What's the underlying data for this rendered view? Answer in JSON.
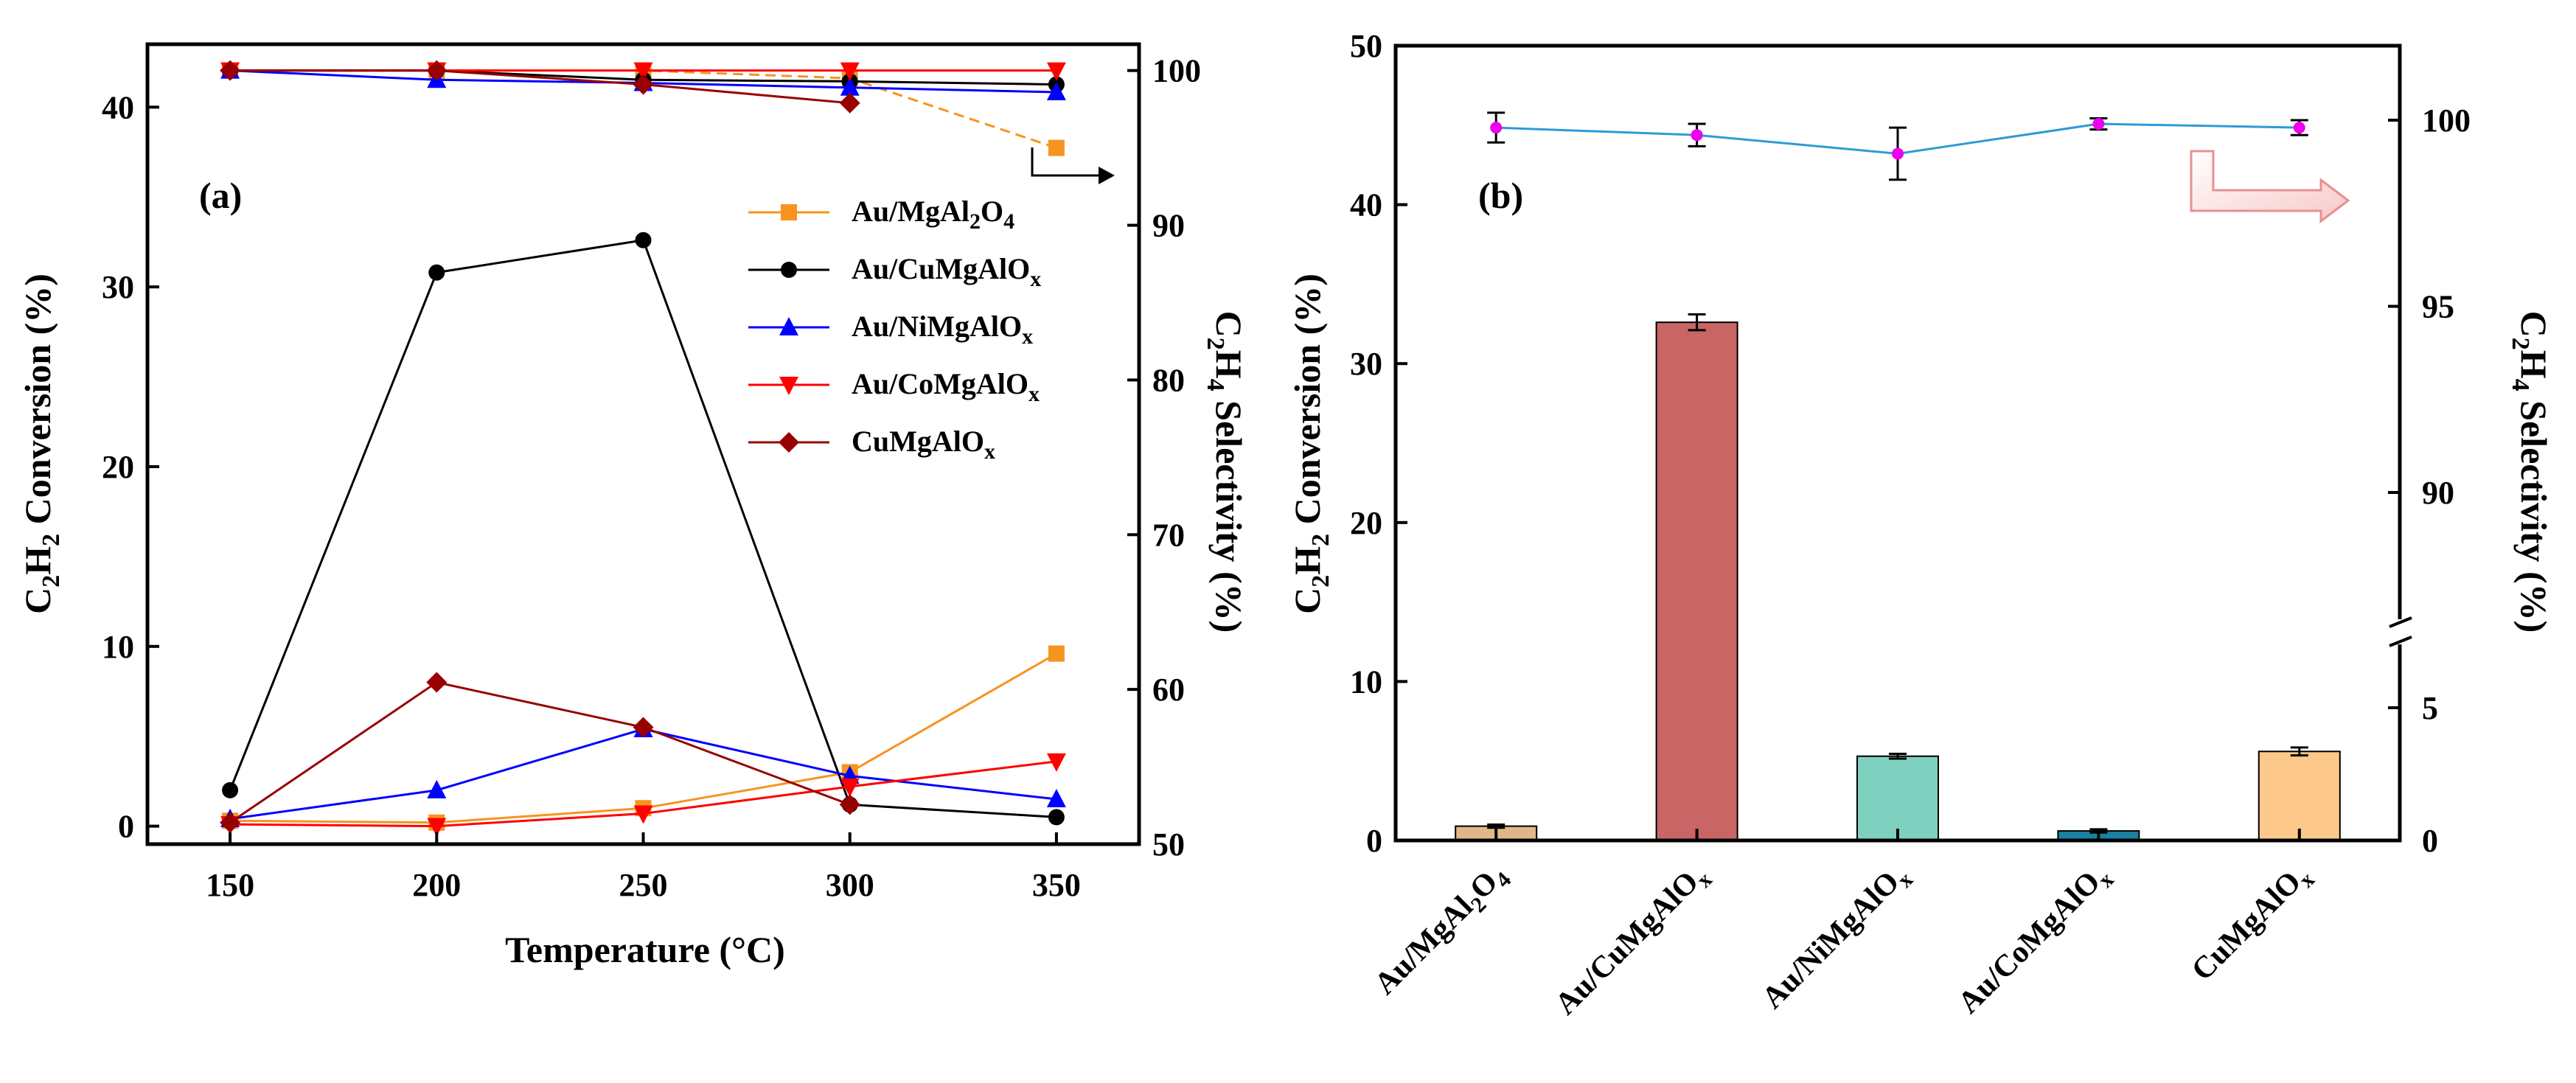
{
  "chart_data": [
    {
      "panel": "(a)",
      "type": "line",
      "xlabel": "Temperature (°C)",
      "ylabel": "C2H2 Conversion (%)",
      "ylabel_right": "C2H4 Selectivity (%)",
      "x": [
        150,
        200,
        250,
        300,
        350
      ],
      "xlim": [
        130,
        370
      ],
      "xticks": [
        "150",
        "200",
        "250",
        "300",
        "350"
      ],
      "ylim": [
        -1,
        43.5
      ],
      "yticks": [
        "0",
        "10",
        "20",
        "30",
        "40"
      ],
      "ylim_right": [
        50,
        101.7
      ],
      "yticks_right": [
        "50",
        "60",
        "70",
        "80",
        "90",
        "100"
      ],
      "legend_position": "right-middle",
      "series": [
        {
          "name": "Au/MgAl2O4",
          "legend_parts": [
            "Au/MgAl",
            "2",
            "O",
            "4",
            ""
          ],
          "color": "#f7941d",
          "marker": "square",
          "dashed_selectivity": true,
          "conversion": [
            0.3,
            0.2,
            1.0,
            3.0,
            9.6
          ],
          "selectivity": [
            100,
            100,
            100,
            99.5,
            95.0
          ]
        },
        {
          "name": "Au/CuMgAlOx",
          "legend_parts": [
            "Au/CuMgAlO",
            "x"
          ],
          "color": "#000000",
          "marker": "circle",
          "dashed_selectivity": false,
          "conversion": [
            2.0,
            30.8,
            32.6,
            1.2,
            0.5
          ],
          "selectivity": [
            100,
            100,
            99.4,
            99.3,
            99.1
          ]
        },
        {
          "name": "Au/NiMgAlOx",
          "legend_parts": [
            "Au/NiMgAlO",
            "x"
          ],
          "color": "#0000ff",
          "marker": "triangle-up",
          "dashed_selectivity": false,
          "conversion": [
            0.4,
            2.0,
            5.4,
            2.8,
            1.5
          ],
          "selectivity": [
            100,
            99.4,
            99.2,
            98.9,
            98.6
          ]
        },
        {
          "name": "Au/CoMgAlOx",
          "legend_parts": [
            "Au/CoMgAlO",
            "x"
          ],
          "color": "#ff0000",
          "marker": "triangle-down",
          "dashed_selectivity": false,
          "conversion": [
            0.1,
            0.0,
            0.7,
            2.2,
            3.6
          ],
          "selectivity": [
            100,
            100,
            100,
            100,
            100
          ]
        },
        {
          "name": "CuMgAlOx",
          "legend_parts": [
            "CuMgAlO",
            "x"
          ],
          "color": "#990000",
          "marker": "diamond",
          "dashed_selectivity": false,
          "conversion": [
            0.2,
            8.0,
            5.5,
            1.2,
            null
          ],
          "selectivity": [
            100,
            100,
            99.1,
            97.9,
            null
          ]
        }
      ]
    },
    {
      "panel": "(b)",
      "type": "bar",
      "ylabel": "C2H2 Conversion (%)",
      "ylabel_right": "C2H4 Selectivity (%)",
      "categories": [
        "Au/MgAl2O4",
        "Au/CuMgAlOx",
        "Au/NiMgAlOx",
        "Au/CoMgAlOx",
        "CuMgAlOx"
      ],
      "category_parts": [
        [
          "Au/MgAl",
          "2",
          "O",
          "4",
          ""
        ],
        [
          "Au/CuMgAlO",
          "x"
        ],
        [
          "Au/NiMgAlO",
          "x"
        ],
        [
          "Au/CoMgAlO",
          "x"
        ],
        [
          "CuMgAlO",
          "x"
        ]
      ],
      "ylim": [
        0,
        50
      ],
      "yticks": [
        "0",
        "10",
        "20",
        "30",
        "40",
        "50"
      ],
      "bar_colors": [
        "#deb887",
        "#c96565",
        "#7fd1bf",
        "#1a81a0",
        "#fcc98b"
      ],
      "conversion": [
        0.9,
        32.6,
        5.3,
        0.6,
        5.6
      ],
      "conversion_error": [
        0.1,
        0.5,
        0.15,
        0.1,
        0.25
      ],
      "selectivity": [
        99.8,
        99.6,
        99.1,
        99.9,
        99.8
      ],
      "selectivity_error": [
        0.4,
        0.3,
        0.7,
        0.15,
        0.2
      ],
      "selectivity_color": "#2c9bd6",
      "selectivity_marker_color": "#ee00ee",
      "yticks_right_upper": [
        "90",
        "95",
        "100"
      ],
      "ylim_right_upper": [
        86,
        102
      ],
      "yticks_right_lower": [
        "0",
        "5"
      ],
      "ylim_right_lower": [
        0,
        7.5
      ],
      "axis_break": true
    }
  ]
}
